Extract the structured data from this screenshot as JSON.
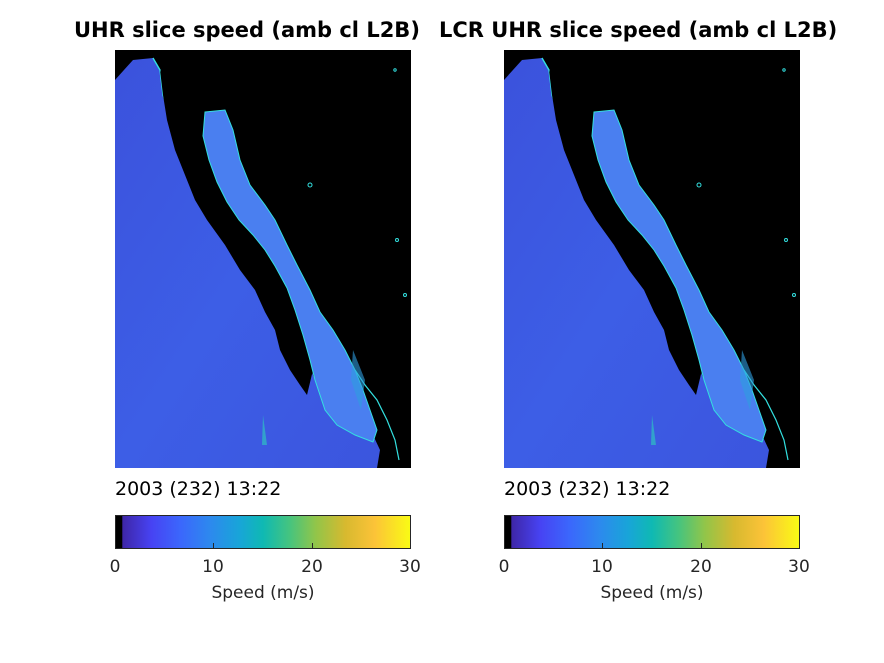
{
  "panels": [
    {
      "title": "UHR slice speed (amb cl L2B)",
      "timestamp": "2003 (232) 13:22",
      "colorbar": {
        "label": "Speed (m/s)",
        "ticks": [
          "0",
          "10",
          "20",
          "30"
        ]
      }
    },
    {
      "title": "LCR UHR slice speed (amb cl L2B)",
      "timestamp": "2003 (232) 13:22",
      "colorbar": {
        "label": "Speed (m/s)",
        "ticks": [
          "0",
          "10",
          "20",
          "30"
        ]
      }
    }
  ],
  "colors": {
    "land": "#000000",
    "ocean_low_wind": "#3d5ee6",
    "ocean_dark": "#3a45d8",
    "coast_highlight": "#33e0e0",
    "gulf_water": "#4a7ff0",
    "background": "#ffffff"
  },
  "colormap": "parula",
  "colorbar_range": [
    0,
    30
  ]
}
